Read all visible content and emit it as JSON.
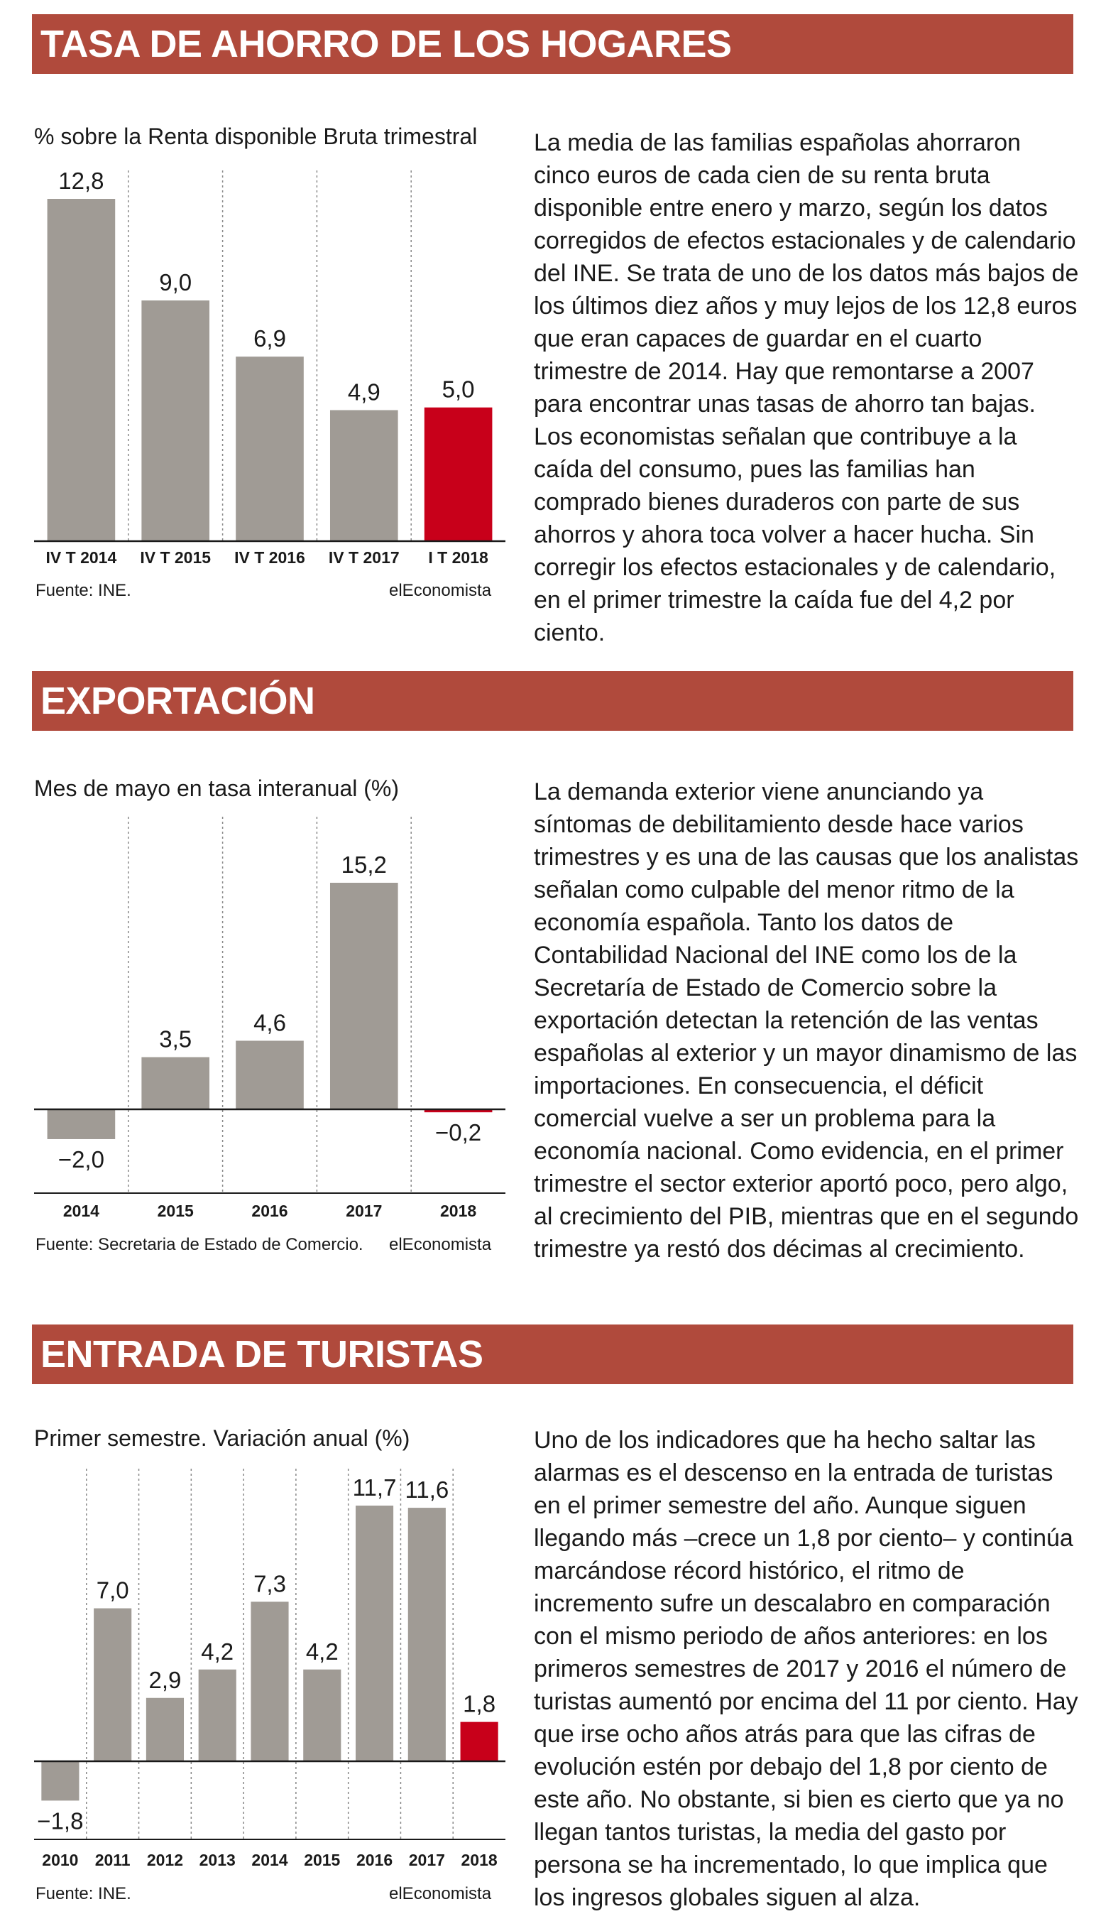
{
  "colors": {
    "banner": "#b04a3c",
    "bar_gray": "#a09b95",
    "bar_highlight": "#c8001a",
    "divider": "#888888"
  },
  "sections": [
    {
      "id": "ahorro",
      "title": "TASA DE AHORRO DE LOS HOGARES",
      "subtitle": "% sobre la Renta disponible Bruta trimestral",
      "source": "Fuente: INE.",
      "brand": "elEconomista",
      "body": "La media de las familias españolas ahorraron cinco euros de cada cien de su renta bruta disponible entre enero y marzo, según los datos corregidos de efectos estacionales y de calendario del INE. Se trata de uno de los datos más bajos de los últimos diez años y muy lejos de los 12,8 euros que eran capaces de guardar en el cuarto trimestre de 2014. Hay que remontarse a 2007 para encontrar unas tasas de ahorro tan bajas. Los economistas señalan que contribuye a la caída del consumo, pues las familias han comprado bienes duraderos con parte de sus ahorros y ahora toca volver a hacer hucha. Sin corregir los efectos estacionales y de calendario, en el primer trimestre la caída fue del 4,2 por ciento."
    },
    {
      "id": "exportacion",
      "title": "EXPORTACIÓN",
      "subtitle": "Mes de mayo en tasa interanual (%)",
      "source": "Fuente: Secretaria de Estado de Comercio.",
      "brand": "elEconomista",
      "body": "La demanda exterior viene anunciando ya síntomas de debilitamiento desde hace varios trimestres y es una de las causas que los analistas señalan como culpable del menor ritmo de la economía española. Tanto los datos de Contabilidad Nacional del INE como los de la Secretaría de Estado de Comercio sobre la exportación detectan la retención de las ventas españolas al exterior y un mayor dinamismo de las importaciones. En consecuencia, el déficit comercial vuelve a ser un problema para la economía nacional. Como evidencia, en el primer trimestre el sector exterior aportó poco, pero algo, al crecimiento del PIB, mientras que en el segundo trimestre ya restó dos décimas al crecimiento."
    },
    {
      "id": "turistas",
      "title": "ENTRADA DE TURISTAS",
      "subtitle": "Primer semestre. Variación anual (%)",
      "source": "Fuente: INE.",
      "brand": "elEconomista",
      "body": "Uno de los indicadores que ha hecho saltar las alarmas es el descenso en la entrada de turistas en el primer semestre del año. Aunque siguen llegando más –crece un 1,8 por ciento– y continúa marcándose récord histórico, el ritmo de incremento sufre un descalabro en comparación con el mismo periodo de años anteriores: en los primeros semestres de 2017 y 2016 el número de turistas aumentó por encima del 11 por ciento. Hay que irse ocho años atrás para que las cifras de evolución estén por debajo del 1,8 por ciento de este año. No obstante, si bien es cierto que ya no llegan tantos turistas, la media del gasto por persona se ha incrementado, lo que implica que los ingresos globales siguen al alza."
    }
  ],
  "chart_data": [
    {
      "type": "bar",
      "title": "TASA DE AHORRO DE LOS HOGARES",
      "subtitle": "% sobre la Renta disponible Bruta trimestral",
      "categories": [
        "IV T 2014",
        "IV T 2015",
        "IV T 2016",
        "IV T 2017",
        "I T 2018"
      ],
      "values": [
        12.8,
        9.0,
        6.9,
        4.9,
        5.0
      ],
      "value_labels": [
        "12,8",
        "9,0",
        "6,9",
        "4,9",
        "5,0"
      ],
      "highlight_index": 4,
      "ylim": [
        0,
        12.8
      ],
      "grid": "vertical dotted separators",
      "legend": "none"
    },
    {
      "type": "bar",
      "title": "EXPORTACIÓN",
      "subtitle": "Mes de mayo en tasa interanual (%)",
      "categories": [
        "2014",
        "2015",
        "2016",
        "2017",
        "2018"
      ],
      "values": [
        -2.0,
        3.5,
        4.6,
        15.2,
        -0.2
      ],
      "value_labels": [
        "−2,0",
        "3,5",
        "4,6",
        "15,2",
        "−0,2"
      ],
      "highlight_index": 4,
      "ylim": [
        -2.0,
        15.2
      ],
      "grid": "vertical dotted separators",
      "legend": "none"
    },
    {
      "type": "bar",
      "title": "ENTRADA DE TURISTAS",
      "subtitle": "Primer semestre. Variación anual (%)",
      "categories": [
        "2010",
        "2011",
        "2012",
        "2013",
        "2014",
        "2015",
        "2016",
        "2017",
        "2018"
      ],
      "values": [
        -1.8,
        7.0,
        2.9,
        4.2,
        7.3,
        4.2,
        11.7,
        11.6,
        1.8
      ],
      "value_labels": [
        "−1,8",
        "7,0",
        "2,9",
        "4,2",
        "7,3",
        "4,2",
        "11,7",
        "11,6",
        "1,8"
      ],
      "highlight_index": 8,
      "ylim": [
        -1.8,
        11.7
      ],
      "grid": "vertical dotted separators",
      "legend": "none"
    }
  ]
}
